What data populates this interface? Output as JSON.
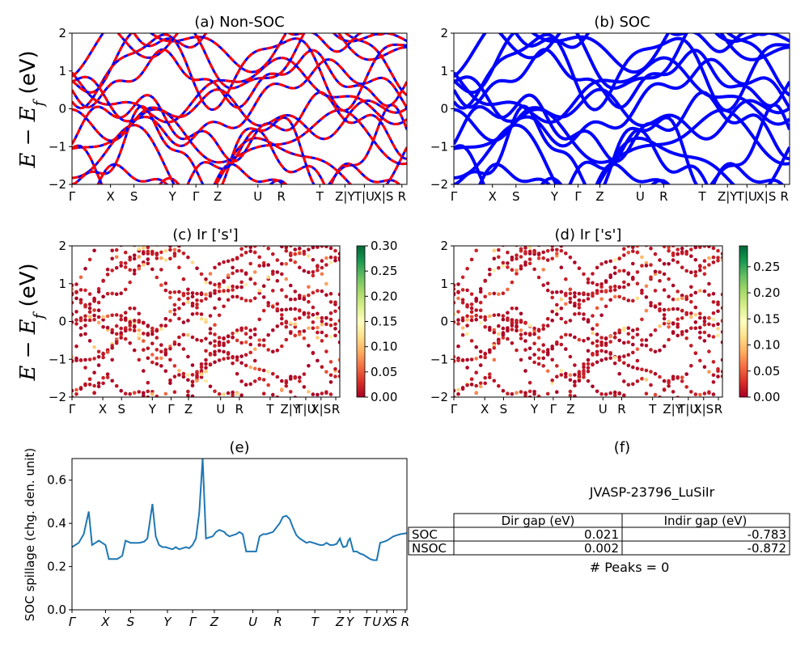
{
  "ylabel_energy": "E − E_f (eV)",
  "ylabel_spillage": "SOC spillage (chg. den. unit)",
  "kpath_labels": [
    "Γ",
    "X",
    "S",
    "Y",
    "Γ",
    "Z",
    "U",
    "R",
    "T",
    "Z|Y",
    "T|U",
    "X|S",
    "R"
  ],
  "kpath_labels_e": [
    "Γ",
    "X",
    "S",
    "Y",
    "Γ",
    "Z",
    "U",
    "R",
    "T",
    "Z",
    "Y",
    "T",
    "U",
    "X",
    "S",
    "R"
  ],
  "panel_f": {
    "title": "(f)",
    "material": "JVASP-23796_LuSiIr",
    "table": {
      "headers": [
        "",
        "Dir gap (eV)",
        "Indir gap (eV)"
      ],
      "rows": [
        [
          "SOC",
          "0.021",
          "-0.783"
        ],
        [
          "NSOC",
          "0.002",
          "-0.872"
        ]
      ]
    },
    "peaks": "# Peaks = 0"
  },
  "chart_data": [
    {
      "id": "a",
      "type": "line",
      "title": "(a) Non-SOC",
      "ylim": [
        -2,
        2
      ],
      "yticks": [
        -2,
        -1,
        0,
        1,
        2
      ],
      "colors": {
        "solid": "#0000ff",
        "dashed": "#ff0000"
      },
      "series_note": "Band structure, non-SOC (red dashed over blue)"
    },
    {
      "id": "b",
      "type": "line",
      "title": "(b) SOC",
      "ylim": [
        -2,
        2
      ],
      "yticks": [
        -2,
        -1,
        0,
        1,
        2
      ],
      "colors": {
        "solid": "#0000ff"
      }
    },
    {
      "id": "c",
      "type": "scatter",
      "title": "(c)  Ir ['s']",
      "ylim": [
        -2,
        2
      ],
      "yticks": [
        -2,
        -1,
        0,
        1,
        2
      ],
      "colorbar": {
        "min": 0.0,
        "max": 0.3,
        "ticks": [
          "0.00",
          "0.05",
          "0.10",
          "0.15",
          "0.20",
          "0.25",
          "0.30"
        ],
        "cmap": "RdYlGn"
      }
    },
    {
      "id": "d",
      "type": "scatter",
      "title": "(d) Ir ['s']",
      "ylim": [
        -2,
        2
      ],
      "yticks": [
        -2,
        -1,
        0,
        1,
        2
      ],
      "colorbar": {
        "min": 0.0,
        "max": 0.29,
        "ticks": [
          "0.00",
          "0.05",
          "0.10",
          "0.15",
          "0.20",
          "0.25"
        ],
        "cmap": "RdYlGn"
      }
    },
    {
      "id": "e",
      "type": "line",
      "title": "(e)",
      "ylabel": "SOC spillage (chg. den. unit)",
      "ylim": [
        0,
        0.7
      ],
      "yticks": [
        "0.0",
        "0.2",
        "0.4",
        "0.6"
      ],
      "color": "#1f77b4",
      "x": [
        0,
        0.02,
        0.035,
        0.05,
        0.06,
        0.07,
        0.08,
        0.09,
        0.1,
        0.11,
        0.125,
        0.135,
        0.14,
        0.15,
        0.16,
        0.175,
        0.19,
        0.2,
        0.215,
        0.225,
        0.24,
        0.25,
        0.26,
        0.27,
        0.28,
        0.29,
        0.3,
        0.31,
        0.32,
        0.33,
        0.34,
        0.35,
        0.36,
        0.37,
        0.38,
        0.39,
        0.4,
        0.41,
        0.42,
        0.43,
        0.44,
        0.455,
        0.46,
        0.47,
        0.48,
        0.49,
        0.5,
        0.51,
        0.52,
        0.53,
        0.54,
        0.55,
        0.56,
        0.57,
        0.58,
        0.6,
        0.62,
        0.63,
        0.64,
        0.65,
        0.66,
        0.67,
        0.68,
        0.69,
        0.7,
        0.71,
        0.72,
        0.73,
        0.74,
        0.75,
        0.76,
        0.77,
        0.78,
        0.79,
        0.8,
        0.805,
        0.81,
        0.82,
        0.825,
        0.83,
        0.84,
        0.85,
        0.86,
        0.87,
        0.88,
        0.89,
        0.9,
        0.91,
        0.92,
        0.93,
        0.94,
        0.95,
        0.96,
        0.97,
        0.98,
        1.0
      ],
      "y": [
        0.29,
        0.31,
        0.35,
        0.455,
        0.3,
        0.31,
        0.32,
        0.31,
        0.3,
        0.235,
        0.235,
        0.235,
        0.24,
        0.25,
        0.32,
        0.31,
        0.31,
        0.31,
        0.315,
        0.33,
        0.49,
        0.34,
        0.3,
        0.29,
        0.29,
        0.285,
        0.28,
        0.29,
        0.28,
        0.285,
        0.29,
        0.285,
        0.3,
        0.33,
        0.45,
        0.7,
        0.33,
        0.335,
        0.34,
        0.36,
        0.37,
        0.36,
        0.35,
        0.34,
        0.345,
        0.35,
        0.36,
        0.35,
        0.27,
        0.27,
        0.27,
        0.27,
        0.34,
        0.35,
        0.35,
        0.36,
        0.4,
        0.43,
        0.435,
        0.42,
        0.38,
        0.345,
        0.33,
        0.32,
        0.31,
        0.315,
        0.31,
        0.305,
        0.3,
        0.3,
        0.31,
        0.3,
        0.3,
        0.305,
        0.33,
        0.305,
        0.29,
        0.295,
        0.32,
        0.33,
        0.27,
        0.27,
        0.26,
        0.255,
        0.245,
        0.235,
        0.23,
        0.23,
        0.31,
        0.315,
        0.32,
        0.33,
        0.34,
        0.345,
        0.35,
        0.355
      ]
    }
  ]
}
